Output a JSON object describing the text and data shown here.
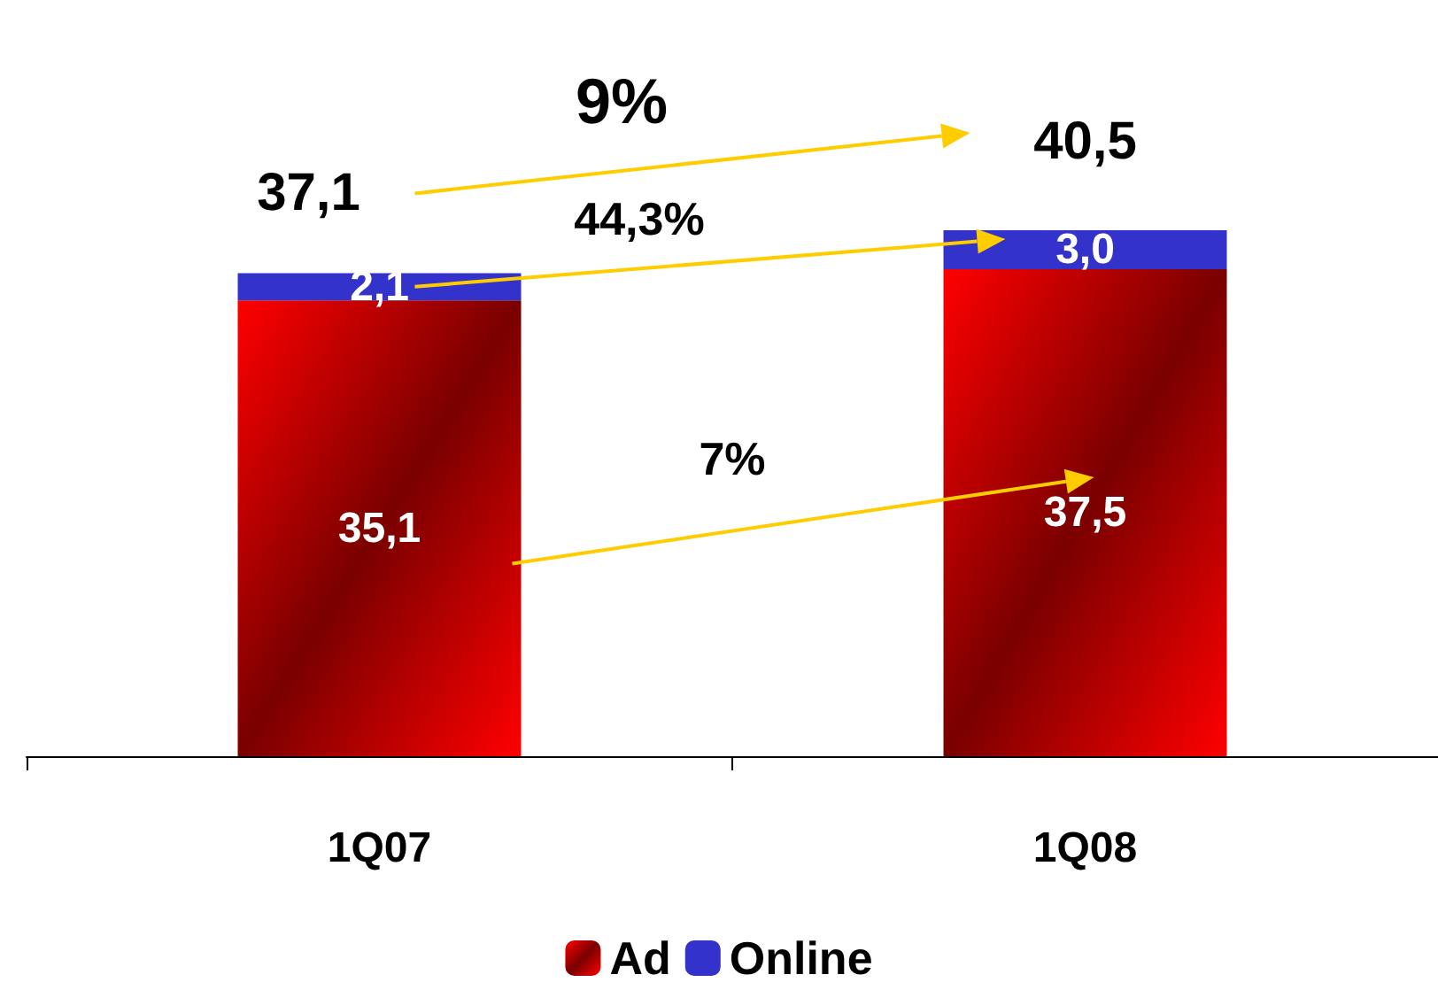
{
  "chart_data": {
    "type": "bar",
    "stacked": true,
    "categories": [
      "1Q07",
      "1Q08"
    ],
    "series": [
      {
        "name": "Ad",
        "color": "#ff0000",
        "values": [
          35.1,
          37.5
        ],
        "value_labels": [
          "35,1",
          "37,5"
        ]
      },
      {
        "name": "Online",
        "color": "#3333cc",
        "values": [
          2.1,
          3.0
        ],
        "value_labels": [
          "2,1",
          "3,0"
        ]
      }
    ],
    "totals": [
      "37,1",
      "40,5"
    ],
    "tick_labels": "x",
    "legend": "bottom",
    "annotations": [
      "9%",
      "44,3%",
      "7%"
    ]
  }
}
